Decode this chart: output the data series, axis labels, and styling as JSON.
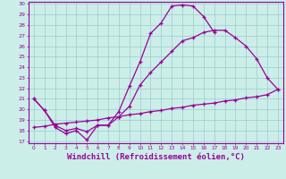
{
  "background_color": "#cceee8",
  "grid_color": "#99cccc",
  "line_color": "#990099",
  "xlabel": "Windchill (Refroidissement éolien,°C)",
  "xlabel_fontsize": 6.5,
  "ymin": 17,
  "ymax": 30,
  "xmin": 0,
  "xmax": 23,
  "line1_x": [
    0,
    1,
    2,
    3,
    4,
    5,
    6,
    7,
    8,
    9,
    10,
    11,
    12,
    13,
    14,
    15,
    16,
    17
  ],
  "line1_y": [
    21.0,
    19.9,
    18.3,
    17.7,
    18.0,
    17.1,
    18.5,
    18.5,
    19.8,
    22.2,
    24.5,
    27.2,
    28.2,
    29.8,
    29.9,
    29.8,
    28.8,
    27.3
  ],
  "line2_x": [
    0,
    1,
    2,
    3,
    4,
    5,
    6,
    7,
    8,
    9,
    10,
    11,
    12,
    13,
    14,
    15,
    16,
    17,
    18,
    19,
    20,
    21,
    22,
    23
  ],
  "line2_y": [
    21.0,
    19.9,
    18.5,
    18.0,
    18.2,
    17.9,
    18.5,
    18.5,
    19.3,
    20.3,
    22.3,
    23.5,
    24.5,
    25.5,
    26.5,
    26.8,
    27.3,
    27.5,
    27.5,
    26.8,
    26.0,
    24.8,
    23.0,
    21.9
  ],
  "line3_x": [
    0,
    1,
    2,
    3,
    4,
    5,
    6,
    7,
    8,
    9,
    10,
    11,
    12,
    13,
    14,
    15,
    16,
    17,
    18,
    19,
    20,
    21,
    22,
    23
  ],
  "line3_y": [
    18.3,
    18.4,
    18.6,
    18.7,
    18.8,
    18.9,
    19.0,
    19.2,
    19.3,
    19.5,
    19.6,
    19.8,
    19.9,
    20.1,
    20.2,
    20.4,
    20.5,
    20.6,
    20.8,
    20.9,
    21.1,
    21.2,
    21.4,
    21.9
  ]
}
